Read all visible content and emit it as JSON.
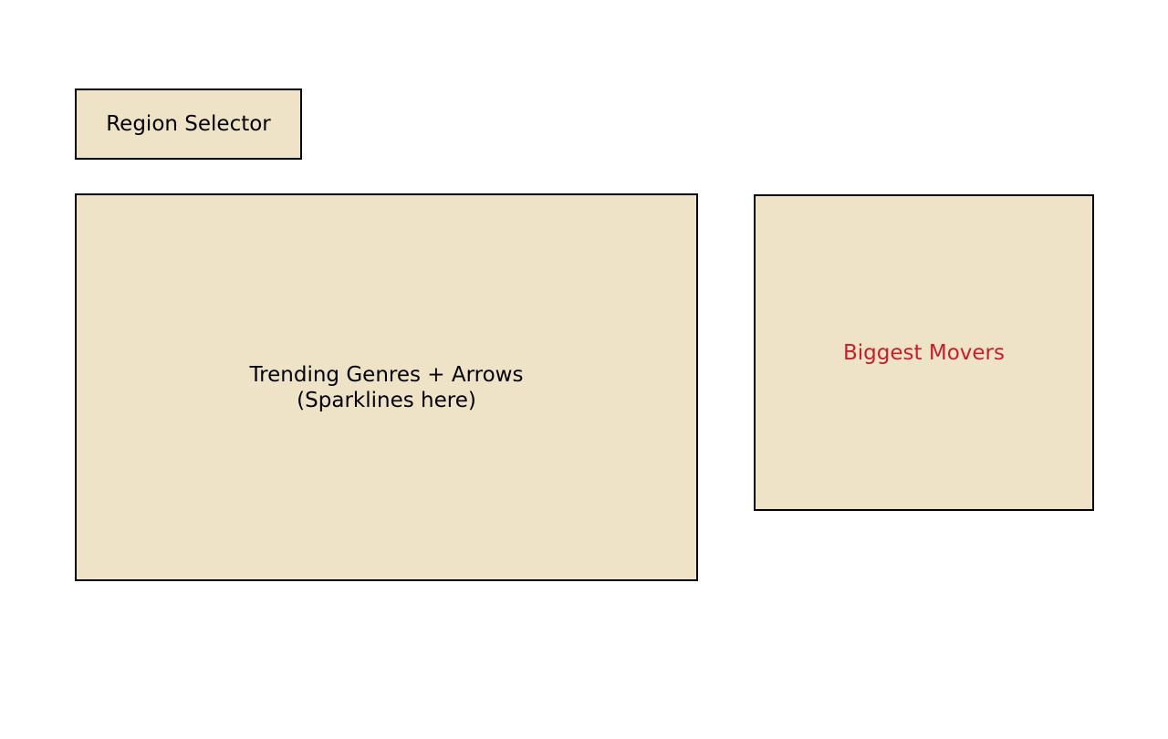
{
  "diagram": {
    "region_selector": {
      "label": "Region Selector"
    },
    "trending_genres": {
      "line1": "Trending Genres + Arrows",
      "line2": "(Sparklines here)"
    },
    "biggest_movers": {
      "label": "Biggest Movers"
    }
  },
  "colors": {
    "box_fill": "#efe3c7",
    "box_border": "#000000",
    "highlight_text": "#c4202a"
  }
}
